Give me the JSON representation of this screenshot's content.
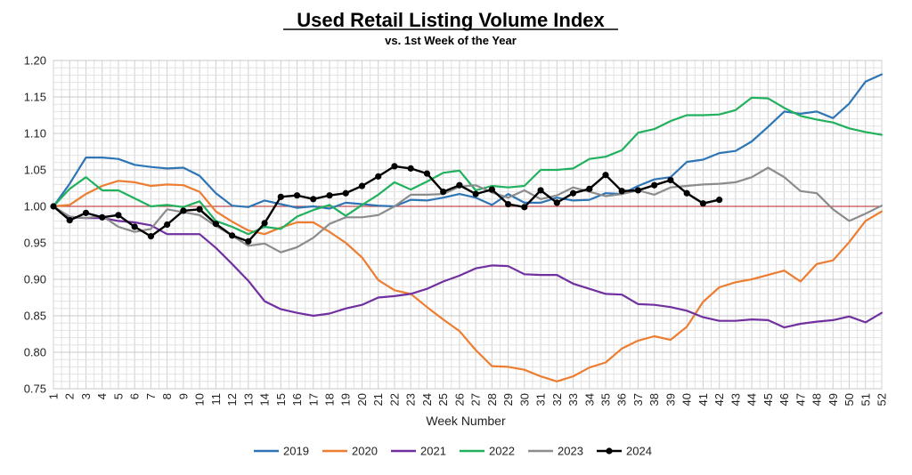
{
  "chart_data": {
    "type": "line",
    "title": "Used Retail Listing Volume Index",
    "subtitle": "vs. 1st Week of the Year",
    "xlabel": "Week Number",
    "ylabel": "",
    "xlim": [
      1,
      52
    ],
    "ylim": [
      0.75,
      1.2
    ],
    "yticks": [
      "0.75",
      "0.80",
      "0.85",
      "0.90",
      "0.95",
      "1.00",
      "1.05",
      "1.10",
      "1.15",
      "1.20"
    ],
    "xticks": [
      "1",
      "2",
      "3",
      "4",
      "5",
      "6",
      "7",
      "8",
      "9",
      "10",
      "11",
      "12",
      "13",
      "14",
      "15",
      "16",
      "17",
      "18",
      "19",
      "20",
      "21",
      "22",
      "23",
      "24",
      "25",
      "26",
      "27",
      "28",
      "29",
      "30",
      "31",
      "32",
      "33",
      "34",
      "35",
      "36",
      "37",
      "38",
      "39",
      "40",
      "41",
      "42",
      "43",
      "44",
      "45",
      "46",
      "47",
      "48",
      "49",
      "50",
      "51",
      "52"
    ],
    "grid": true,
    "reference_line": {
      "y": 1.0,
      "color": "#c0504d"
    },
    "legend_position": "bottom",
    "series": [
      {
        "name": "2019",
        "color": "#2e75b6",
        "markers": false,
        "values": [
          1.0,
          1.031,
          1.067,
          1.067,
          1.065,
          1.057,
          1.054,
          1.052,
          1.053,
          1.042,
          1.018,
          1.001,
          0.999,
          1.008,
          1.003,
          0.998,
          1.0,
          0.997,
          1.005,
          1.003,
          1.001,
          1.0,
          1.009,
          1.008,
          1.012,
          1.017,
          1.012,
          1.002,
          1.017,
          1.005,
          1.005,
          1.012,
          1.008,
          1.009,
          1.018,
          1.017,
          1.028,
          1.037,
          1.04,
          1.061,
          1.064,
          1.073,
          1.076,
          1.089,
          1.109,
          1.13,
          1.127,
          1.13,
          1.121,
          1.141,
          1.171,
          1.181
        ]
      },
      {
        "name": "2020",
        "color": "#ed7d31",
        "markers": false,
        "values": [
          1.0,
          1.002,
          1.017,
          1.028,
          1.035,
          1.033,
          1.028,
          1.03,
          1.029,
          1.02,
          0.993,
          0.979,
          0.967,
          0.962,
          0.971,
          0.978,
          0.978,
          0.965,
          0.95,
          0.93,
          0.899,
          0.885,
          0.88,
          0.862,
          0.845,
          0.829,
          0.803,
          0.781,
          0.78,
          0.776,
          0.767,
          0.76,
          0.767,
          0.779,
          0.786,
          0.805,
          0.816,
          0.822,
          0.817,
          0.835,
          0.869,
          0.889,
          0.896,
          0.9,
          0.906,
          0.912,
          0.897,
          0.921,
          0.926,
          0.951,
          0.98,
          0.993
        ]
      },
      {
        "name": "2021",
        "color": "#7030a0",
        "markers": false,
        "values": [
          1.0,
          0.985,
          0.984,
          0.984,
          0.98,
          0.978,
          0.974,
          0.962,
          0.962,
          0.962,
          0.943,
          0.921,
          0.898,
          0.87,
          0.859,
          0.854,
          0.85,
          0.853,
          0.86,
          0.865,
          0.875,
          0.877,
          0.88,
          0.887,
          0.897,
          0.905,
          0.915,
          0.919,
          0.918,
          0.907,
          0.906,
          0.906,
          0.894,
          0.887,
          0.88,
          0.879,
          0.866,
          0.865,
          0.862,
          0.857,
          0.848,
          0.843,
          0.843,
          0.845,
          0.844,
          0.834,
          0.839,
          0.842,
          0.844,
          0.849,
          0.841,
          0.854
        ]
      },
      {
        "name": "2022",
        "color": "#21b15c",
        "markers": false,
        "values": [
          1.0,
          1.024,
          1.04,
          1.022,
          1.022,
          1.011,
          1.0,
          1.002,
          0.999,
          1.007,
          0.98,
          0.972,
          0.962,
          0.972,
          0.969,
          0.986,
          0.995,
          1.002,
          0.987,
          1.002,
          1.016,
          1.033,
          1.023,
          1.034,
          1.046,
          1.049,
          1.022,
          1.028,
          1.026,
          1.028,
          1.05,
          1.05,
          1.052,
          1.065,
          1.068,
          1.077,
          1.101,
          1.106,
          1.117,
          1.125,
          1.125,
          1.126,
          1.132,
          1.149,
          1.148,
          1.135,
          1.124,
          1.119,
          1.115,
          1.107,
          1.102,
          1.098
        ]
      },
      {
        "name": "2023",
        "color": "#8c8c8c",
        "markers": false,
        "values": [
          1.0,
          0.986,
          0.984,
          0.987,
          0.972,
          0.965,
          0.969,
          0.996,
          0.992,
          0.988,
          0.973,
          0.96,
          0.946,
          0.949,
          0.937,
          0.944,
          0.957,
          0.976,
          0.985,
          0.985,
          0.988,
          1.0,
          1.016,
          1.016,
          1.017,
          1.027,
          1.029,
          1.019,
          1.012,
          1.022,
          1.01,
          1.015,
          1.026,
          1.02,
          1.014,
          1.017,
          1.022,
          1.016,
          1.026,
          1.028,
          1.03,
          1.031,
          1.033,
          1.04,
          1.053,
          1.04,
          1.021,
          1.018,
          0.996,
          0.98,
          0.99,
          1.001
        ]
      },
      {
        "name": "2024",
        "color": "#000000",
        "markers": true,
        "values": [
          1.0,
          0.981,
          0.991,
          0.985,
          0.988,
          0.972,
          0.959,
          0.975,
          0.994,
          0.996,
          0.976,
          0.96,
          0.952,
          0.977,
          1.013,
          1.015,
          1.01,
          1.015,
          1.018,
          1.028,
          1.041,
          1.055,
          1.052,
          1.045,
          1.02,
          1.029,
          1.017,
          1.023,
          1.003,
          0.999,
          1.022,
          1.005,
          1.018,
          1.024,
          1.043,
          1.021,
          1.022,
          1.029,
          1.036,
          1.018,
          1.004,
          1.009
        ]
      }
    ]
  }
}
